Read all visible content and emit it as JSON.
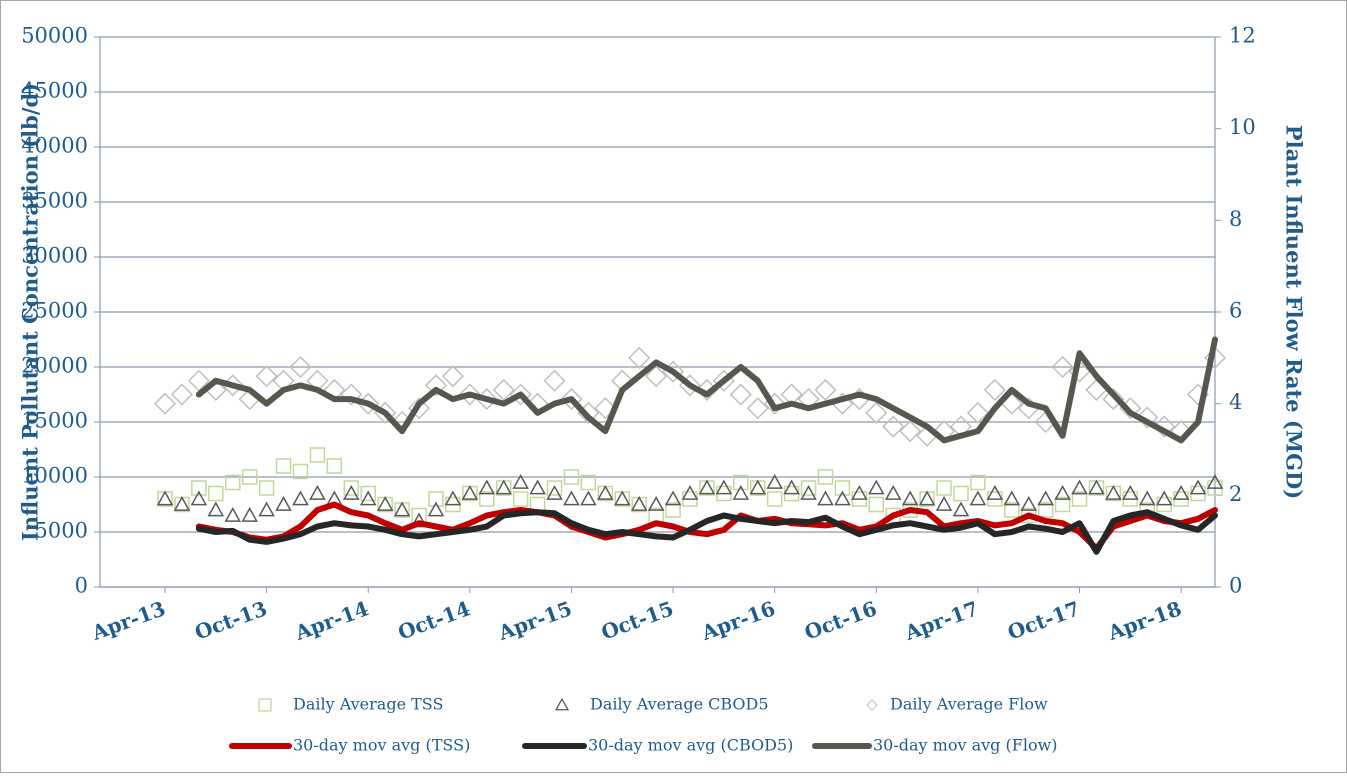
{
  "chart_data": {
    "type": "line",
    "y_label": "Influent Pollutant Concentration (lb/d)",
    "y2_label": "Plant Influent Flow Rate (MGD)",
    "x": [
      "Apr-13",
      "May-13",
      "Jun-13",
      "Jul-13",
      "Aug-13",
      "Sep-13",
      "Oct-13",
      "Nov-13",
      "Dec-13",
      "Jan-14",
      "Feb-14",
      "Mar-14",
      "Apr-14",
      "May-14",
      "Jun-14",
      "Jul-14",
      "Aug-14",
      "Sep-14",
      "Oct-14",
      "Nov-14",
      "Dec-14",
      "Jan-15",
      "Feb-15",
      "Mar-15",
      "Apr-15",
      "May-15",
      "Jun-15",
      "Jul-15",
      "Aug-15",
      "Sep-15",
      "Oct-15",
      "Nov-15",
      "Dec-15",
      "Jan-16",
      "Feb-16",
      "Mar-16",
      "Apr-16",
      "May-16",
      "Jun-16",
      "Jul-16",
      "Aug-16",
      "Sep-16",
      "Oct-16",
      "Nov-16",
      "Dec-16",
      "Jan-17",
      "Feb-17",
      "Mar-17",
      "Apr-17",
      "May-17",
      "Jun-17",
      "Jul-17",
      "Aug-17",
      "Sep-17",
      "Oct-17",
      "Nov-17",
      "Dec-17",
      "Jan-18",
      "Feb-18",
      "Mar-18",
      "Apr-18",
      "May-18",
      "Jun-18"
    ],
    "xticks": [
      "Apr-13",
      "Oct-13",
      "Apr-14",
      "Oct-14",
      "Apr-15",
      "Oct-15",
      "Apr-16",
      "Oct-16",
      "Apr-17",
      "Oct-17",
      "Apr-18"
    ],
    "ylim": [
      0,
      50000
    ],
    "yticks": [
      0,
      5000,
      10000,
      15000,
      20000,
      25000,
      30000,
      35000,
      40000,
      45000,
      50000
    ],
    "y2lim": [
      0,
      12
    ],
    "y2ticks": [
      0,
      2,
      4,
      6,
      8,
      10,
      12
    ],
    "grid": true,
    "legend": "bottom",
    "series": [
      {
        "name": "Daily Average TSS",
        "color": "#c4d79b",
        "style": "square",
        "values": [
          8000,
          7500,
          9000,
          8500,
          9500,
          10000,
          9000,
          11000,
          10500,
          12000,
          11000,
          9000,
          8500,
          7500,
          7000,
          6500,
          8000,
          7500,
          8500,
          8000,
          9000,
          8000,
          7500,
          9000,
          10000,
          9500,
          8500,
          8000,
          7500,
          6500,
          7000,
          8000,
          9000,
          8500,
          9500,
          9000,
          8000,
          8500,
          9000,
          10000,
          9000,
          8000,
          7500,
          6500,
          7000,
          8000,
          9000,
          8500,
          9500,
          8000,
          7000,
          6500,
          7000,
          7500,
          8000,
          9000,
          8500,
          8000,
          7000,
          7500,
          8000,
          8500,
          9000
        ]
      },
      {
        "name": "Daily Average CBOD5",
        "color": "#595959",
        "style": "triangle",
        "values": [
          8000,
          7500,
          8000,
          7000,
          6500,
          6500,
          7000,
          7500,
          8000,
          8500,
          8000,
          8500,
          8000,
          7500,
          7000,
          6000,
          7000,
          8000,
          8500,
          9000,
          9000,
          9500,
          9000,
          8500,
          8000,
          8000,
          8500,
          8000,
          7500,
          7500,
          8000,
          8500,
          9000,
          9000,
          8500,
          9000,
          9500,
          9000,
          8500,
          8000,
          8000,
          8500,
          9000,
          8500,
          8000,
          8000,
          7500,
          7000,
          8000,
          8500,
          8000,
          7500,
          8000,
          8500,
          9000,
          9000,
          8500,
          8500,
          8000,
          8000,
          8500,
          9000,
          9500
        ]
      },
      {
        "name": "Daily Average Flow",
        "color": "#bfbfbf",
        "style": "diamond",
        "axis": "y2",
        "values": [
          4.0,
          4.2,
          4.5,
          4.3,
          4.4,
          4.1,
          4.6,
          4.5,
          4.8,
          4.5,
          4.3,
          4.2,
          4.0,
          3.8,
          3.6,
          3.9,
          4.4,
          4.6,
          4.2,
          4.1,
          4.3,
          4.2,
          4.0,
          4.5,
          4.1,
          3.8,
          3.9,
          4.5,
          5.0,
          4.6,
          4.7,
          4.4,
          4.3,
          4.5,
          4.2,
          3.9,
          4.0,
          4.2,
          4.1,
          4.3,
          4.0,
          4.1,
          3.8,
          3.5,
          3.4,
          3.3,
          3.4,
          3.5,
          3.8,
          4.3,
          4.0,
          3.9,
          3.6,
          4.8,
          4.7,
          4.3,
          4.1,
          3.9,
          3.7,
          3.5,
          3.4,
          4.2,
          5.0
        ]
      },
      {
        "name": "30-day mov avg (TSS)",
        "color": "#c00000",
        "style": "line",
        "values": [
          null,
          null,
          5500,
          5200,
          5000,
          4500,
          4300,
          4600,
          5500,
          7000,
          7500,
          6800,
          6500,
          5800,
          5200,
          5800,
          5500,
          5200,
          5800,
          6500,
          6800,
          7000,
          6800,
          6500,
          5500,
          5000,
          4500,
          4800,
          5200,
          5800,
          5500,
          5000,
          4800,
          5200,
          6500,
          6000,
          6200,
          5800,
          5700,
          5600,
          5800,
          5200,
          5500,
          6500,
          7000,
          6800,
          5500,
          5800,
          6000,
          5600,
          5800,
          6500,
          6000,
          5800,
          5000,
          3500,
          5500,
          6000,
          6500,
          6000,
          5800,
          6200,
          7000
        ]
      },
      {
        "name": "30-day mov avg  (CBOD5)",
        "color": "#262626",
        "style": "line",
        "values": [
          null,
          null,
          5300,
          5000,
          5100,
          4300,
          4100,
          4400,
          4800,
          5500,
          5800,
          5600,
          5500,
          5200,
          4800,
          4600,
          4800,
          5000,
          5200,
          5500,
          6500,
          6700,
          6800,
          6700,
          5800,
          5200,
          4800,
          5000,
          4800,
          4600,
          4500,
          5200,
          6000,
          6500,
          6200,
          6000,
          5800,
          6000,
          5900,
          6300,
          5500,
          4800,
          5200,
          5600,
          5800,
          5500,
          5200,
          5400,
          5800,
          4800,
          5000,
          5500,
          5300,
          5000,
          5800,
          3200,
          6000,
          6500,
          6800,
          6200,
          5600,
          5200,
          6500
        ]
      },
      {
        "name": "30-day mov avg (Flow)",
        "color": "#595650",
        "style": "line",
        "axis": "y2",
        "values": [
          null,
          null,
          4.2,
          4.5,
          4.4,
          4.3,
          4.0,
          4.3,
          4.4,
          4.3,
          4.1,
          4.1,
          4.0,
          3.8,
          3.4,
          4.0,
          4.3,
          4.1,
          4.2,
          4.1,
          4.0,
          4.2,
          3.8,
          4.0,
          4.1,
          3.7,
          3.4,
          4.3,
          4.6,
          4.9,
          4.7,
          4.4,
          4.2,
          4.5,
          4.8,
          4.5,
          3.9,
          4.0,
          3.9,
          4.0,
          4.1,
          4.2,
          4.1,
          3.9,
          3.7,
          3.5,
          3.2,
          3.3,
          3.4,
          3.9,
          4.3,
          4.0,
          3.9,
          3.3,
          5.1,
          4.6,
          4.2,
          3.8,
          3.6,
          3.4,
          3.2,
          3.6,
          5.4
        ]
      }
    ]
  }
}
